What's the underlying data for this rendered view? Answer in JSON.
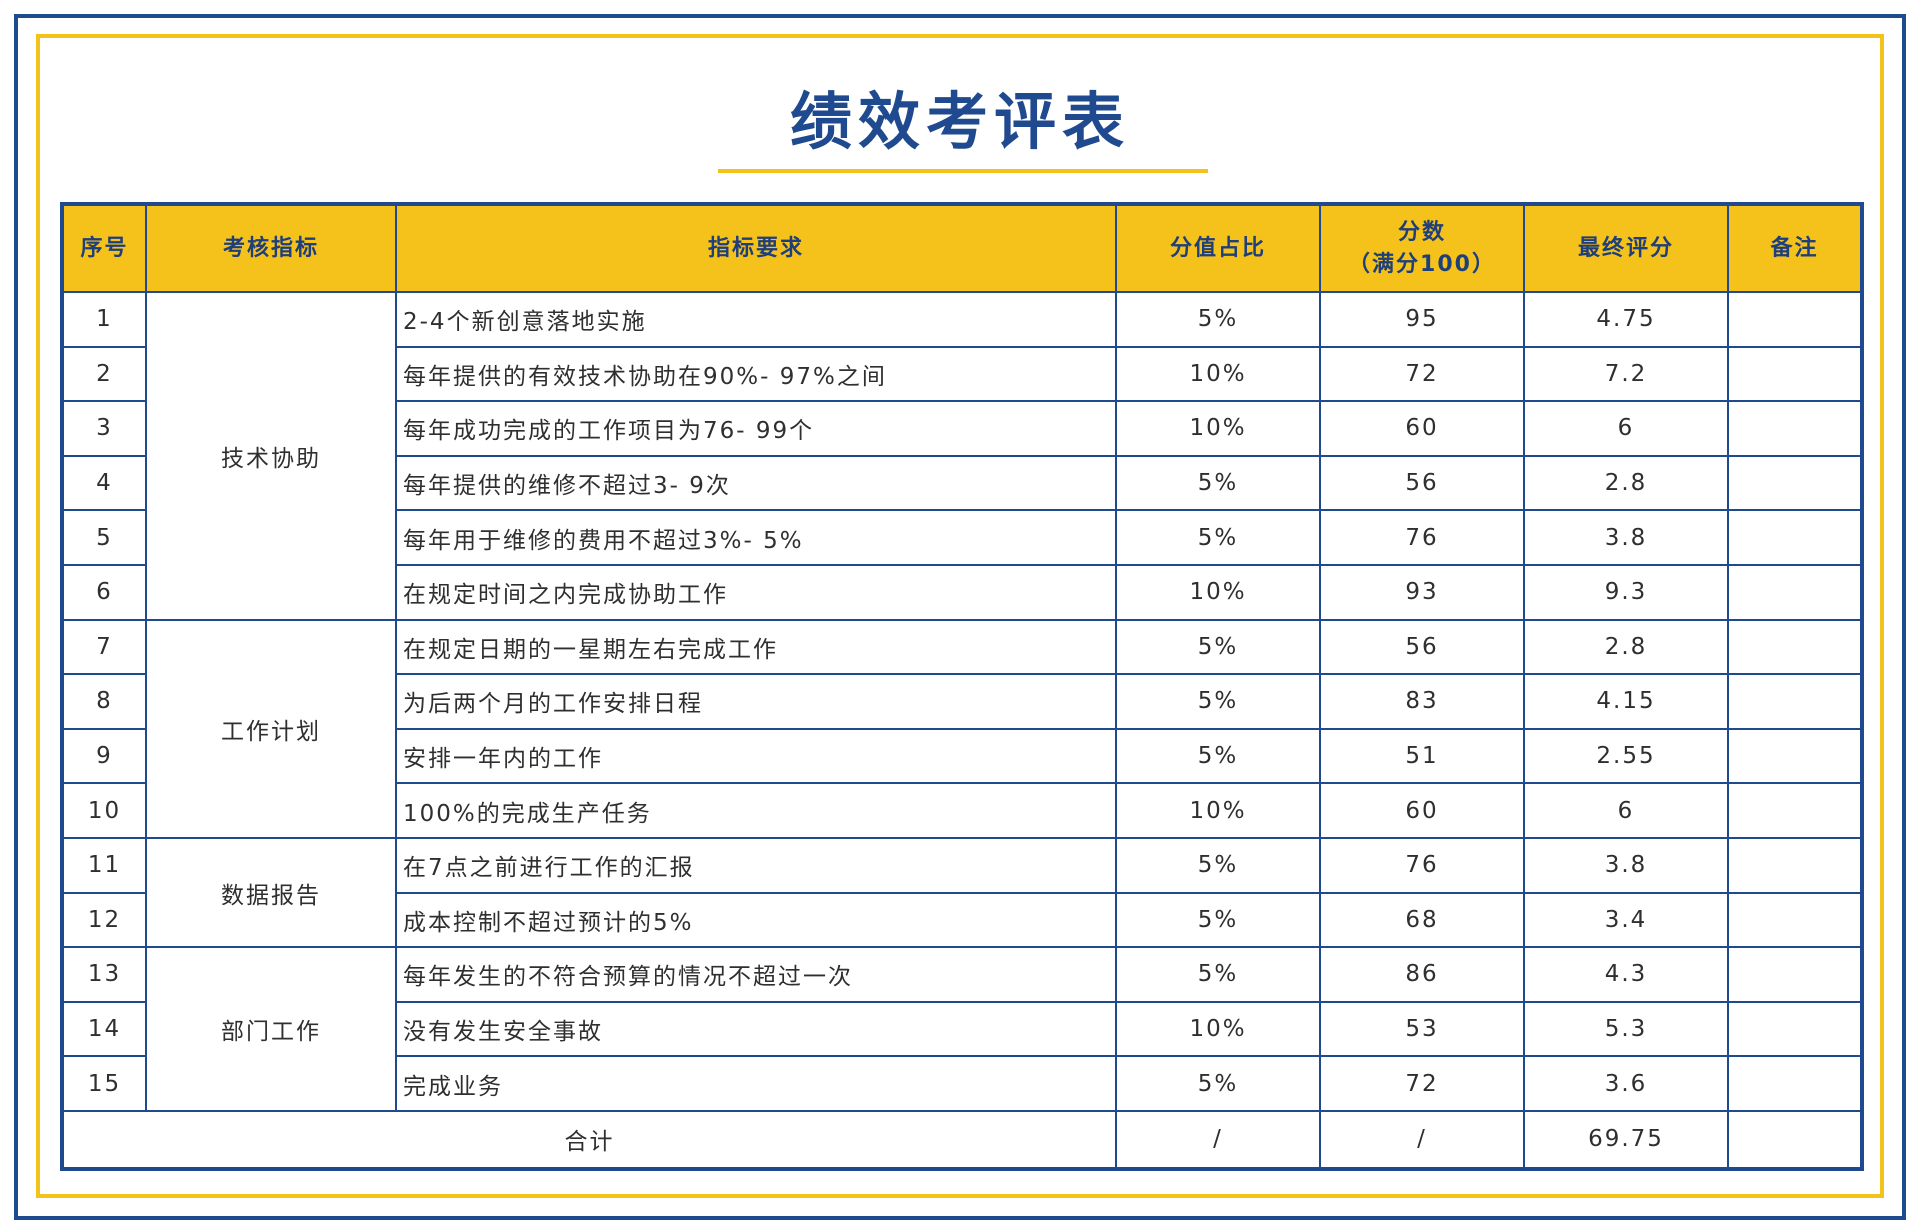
{
  "title": "绩效考评表",
  "colors": {
    "primary_blue": "#1f4a8f",
    "accent_yellow": "#f5c21b"
  },
  "table": {
    "headers": {
      "index": "序号",
      "category": "考核指标",
      "requirement": "指标要求",
      "weight": "分值占比",
      "score_line1": "分数",
      "score_line2": "（满分100）",
      "final": "最终评分",
      "note": "备注"
    },
    "groups": [
      {
        "label": "技术协助"
      },
      {
        "label": "工作计划"
      },
      {
        "label": "数据报告"
      },
      {
        "label": "部门工作"
      }
    ],
    "rows": [
      {
        "no": "1",
        "requirement": "2-4个新创意落地实施",
        "weight": "5%",
        "score": "95",
        "final": "4.75",
        "note": ""
      },
      {
        "no": "2",
        "requirement": "每年提供的有效技术协助在90%- 97%之间",
        "weight": "10%",
        "score": "72",
        "final": "7.2",
        "note": ""
      },
      {
        "no": "3",
        "requirement": "每年成功完成的工作项目为76- 99个",
        "weight": "10%",
        "score": "60",
        "final": "6",
        "note": ""
      },
      {
        "no": "4",
        "requirement": "每年提供的维修不超过3- 9次",
        "weight": "5%",
        "score": "56",
        "final": "2.8",
        "note": ""
      },
      {
        "no": "5",
        "requirement": "每年用于维修的费用不超过3%- 5%",
        "weight": "5%",
        "score": "76",
        "final": "3.8",
        "note": ""
      },
      {
        "no": "6",
        "requirement": "在规定时间之内完成协助工作",
        "weight": "10%",
        "score": "93",
        "final": "9.3",
        "note": ""
      },
      {
        "no": "7",
        "requirement": "在规定日期的一星期左右完成工作",
        "weight": "5%",
        "score": "56",
        "final": "2.8",
        "note": ""
      },
      {
        "no": "8",
        "requirement": "为后两个月的工作安排日程",
        "weight": "5%",
        "score": "83",
        "final": "4.15",
        "note": ""
      },
      {
        "no": "9",
        "requirement": "安排一年内的工作",
        "weight": "5%",
        "score": "51",
        "final": "2.55",
        "note": ""
      },
      {
        "no": "10",
        "requirement": "100%的完成生产任务",
        "weight": "10%",
        "score": "60",
        "final": "6",
        "note": ""
      },
      {
        "no": "11",
        "requirement": "在7点之前进行工作的汇报",
        "weight": "5%",
        "score": "76",
        "final": "3.8",
        "note": ""
      },
      {
        "no": "12",
        "requirement": "成本控制不超过预计的5%",
        "weight": "5%",
        "score": "68",
        "final": "3.4",
        "note": ""
      },
      {
        "no": "13",
        "requirement": "每年发生的不符合预算的情况不超过一次",
        "weight": "5%",
        "score": "86",
        "final": "4.3",
        "note": ""
      },
      {
        "no": "14",
        "requirement": "没有发生安全事故",
        "weight": "10%",
        "score": "53",
        "final": "5.3",
        "note": ""
      },
      {
        "no": "15",
        "requirement": "完成业务",
        "weight": "5%",
        "score": "72",
        "final": "3.6",
        "note": ""
      }
    ],
    "total": {
      "label": "合计",
      "weight": "/",
      "score": "/",
      "final": "69.75",
      "note": ""
    }
  }
}
